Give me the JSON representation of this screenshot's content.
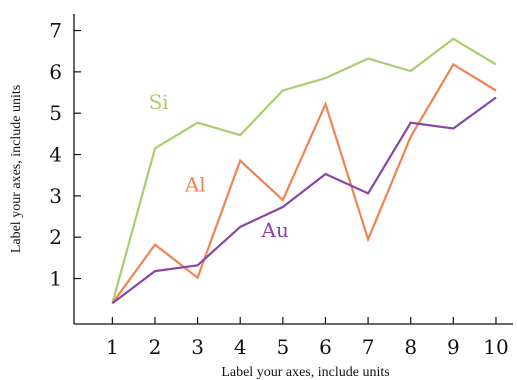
{
  "chart_data": {
    "type": "line",
    "title": "",
    "xlabel": "Label your axes, include units",
    "ylabel": "Label your axes, include units",
    "x": [
      1,
      2,
      3,
      4,
      5,
      6,
      7,
      8,
      9,
      10
    ],
    "xlim": [
      0.1,
      10.4
    ],
    "ylim": [
      -0.1,
      7.4
    ],
    "xticks": [
      1,
      2,
      3,
      4,
      5,
      6,
      7,
      8,
      9,
      10
    ],
    "yticks": [
      1,
      2,
      3,
      4,
      5,
      6,
      7
    ],
    "grid": false,
    "legend": "none (series labelled inline on the plot)",
    "series": [
      {
        "name": "Si",
        "color": "#a8cf6c",
        "values": [
          0.4,
          4.15,
          4.77,
          4.47,
          5.55,
          5.85,
          6.32,
          6.02,
          6.8,
          6.18
        ]
      },
      {
        "name": "Al",
        "color": "#ee8550",
        "values": [
          0.4,
          1.82,
          1.02,
          3.85,
          2.9,
          5.22,
          1.95,
          4.43,
          6.18,
          5.55
        ]
      },
      {
        "name": "Au",
        "color": "#8b44a8",
        "values": [
          0.4,
          1.18,
          1.32,
          2.25,
          2.73,
          3.53,
          3.06,
          4.77,
          4.63,
          5.38
        ]
      }
    ]
  }
}
